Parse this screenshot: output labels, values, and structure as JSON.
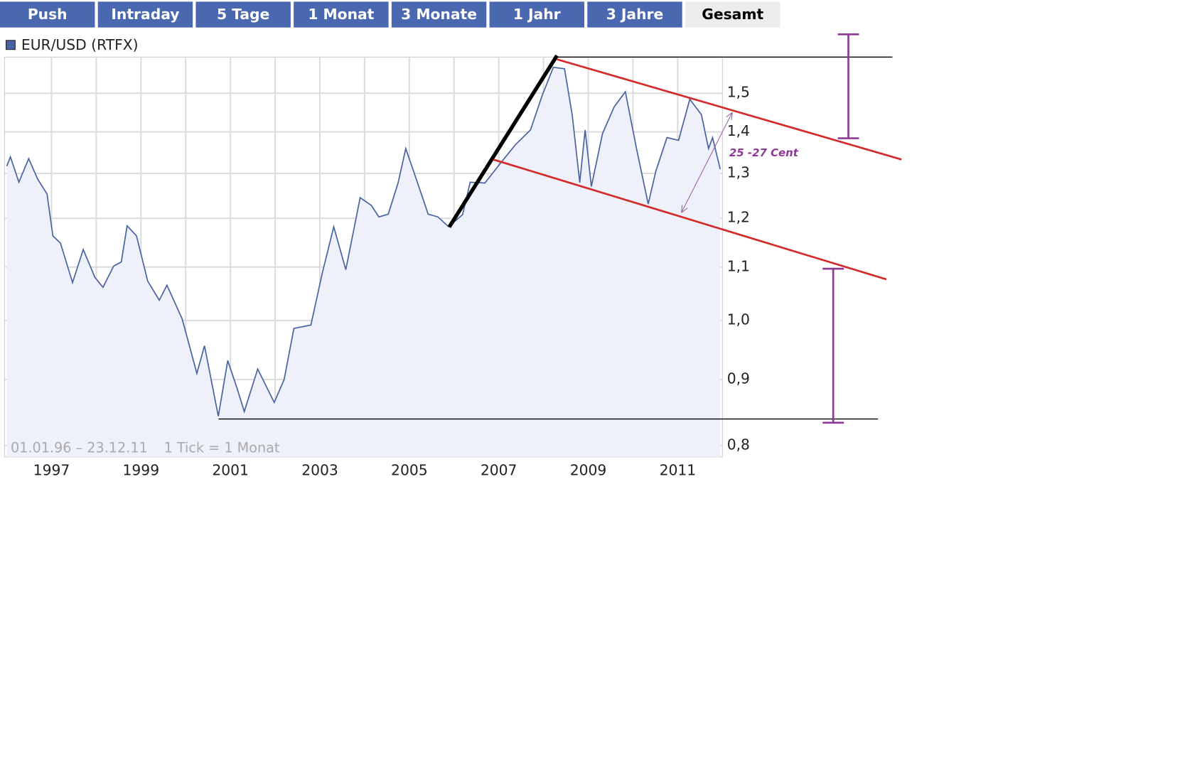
{
  "tabs": {
    "items": [
      "Push",
      "Intraday",
      "5 Tage",
      "1 Monat",
      "3 Monate",
      "1 Jahr",
      "3 Jahre",
      "Gesamt"
    ],
    "active": 7
  },
  "chart_data": {
    "type": "line",
    "x": [
      1996.0,
      1996.08,
      1996.27,
      1996.49,
      1996.69,
      1996.9,
      1997.03,
      1997.2,
      1997.47,
      1997.71,
      1997.97,
      1998.15,
      1998.39,
      1998.56,
      1998.69,
      1998.9,
      1999.15,
      1999.41,
      1999.58,
      1999.92,
      2000.25,
      2000.42,
      2000.73,
      2000.94,
      2001.14,
      2001.31,
      2001.61,
      2001.98,
      2002.2,
      2002.42,
      2002.8,
      2003.05,
      2003.31,
      2003.58,
      2003.9,
      2004.15,
      2004.32,
      2004.53,
      2004.75,
      2004.92,
      2005.08,
      2005.42,
      2005.64,
      2005.88,
      2006.19,
      2006.36,
      2006.69,
      2007.03,
      2007.37,
      2007.71,
      2007.97,
      2008.22,
      2008.47,
      2008.64,
      2008.81,
      2008.93,
      2009.07,
      2009.32,
      2009.58,
      2009.83,
      2010.08,
      2010.34,
      2010.51,
      2010.76,
      2011.02,
      2011.27,
      2011.53,
      2011.69,
      2011.78,
      2011.95
    ],
    "series": [
      {
        "name": "EUR/USD (RTFX)",
        "color": "#4a64a0",
        "values": [
          1.317,
          1.339,
          1.28,
          1.335,
          1.287,
          1.253,
          1.163,
          1.148,
          1.07,
          1.135,
          1.08,
          1.061,
          1.102,
          1.11,
          1.184,
          1.163,
          1.073,
          1.037,
          1.065,
          1.003,
          0.91,
          0.956,
          0.843,
          0.931,
          0.888,
          0.85,
          0.917,
          0.864,
          0.9,
          0.986,
          0.992,
          1.087,
          1.182,
          1.095,
          1.245,
          1.228,
          1.203,
          1.209,
          1.279,
          1.359,
          1.31,
          1.209,
          1.203,
          1.182,
          1.208,
          1.28,
          1.278,
          1.323,
          1.368,
          1.405,
          1.494,
          1.571,
          1.567,
          1.444,
          1.279,
          1.405,
          1.27,
          1.396,
          1.464,
          1.504,
          1.359,
          1.231,
          1.305,
          1.386,
          1.379,
          1.484,
          1.444,
          1.359,
          1.386,
          1.31
        ]
      }
    ],
    "xlim": [
      1995.95,
      2012.0
    ],
    "xticks": [
      1997,
      1999,
      2001,
      2003,
      2005,
      2007,
      2009,
      2011
    ],
    "ylim": [
      0.784,
      1.6
    ],
    "yscale": "log",
    "yticks": [
      {
        "value": 0.8,
        "label": "0,8"
      },
      {
        "value": 0.9,
        "label": "0,9"
      },
      {
        "value": 1.0,
        "label": "1,0"
      },
      {
        "value": 1.1,
        "label": "1,1"
      },
      {
        "value": 1.2,
        "label": "1,2"
      },
      {
        "value": 1.3,
        "label": "1,3"
      },
      {
        "value": 1.4,
        "label": "1,4"
      },
      {
        "value": 1.5,
        "label": "1,5"
      }
    ],
    "grid": true,
    "area_color": "#eef0fa",
    "footer": [
      "01.01.96 – 23.12.11",
      "1 Tick = 1 Monat"
    ],
    "annotation": "25 -27 Cent"
  }
}
